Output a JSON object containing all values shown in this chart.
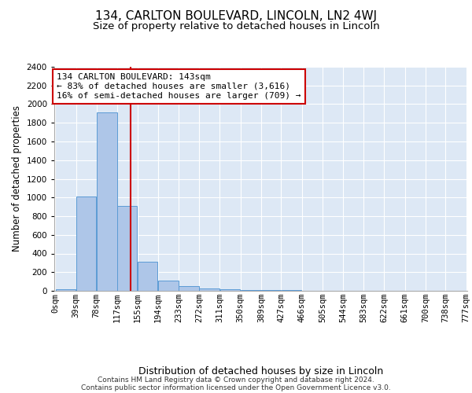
{
  "title1": "134, CARLTON BOULEVARD, LINCOLN, LN2 4WJ",
  "title2": "Size of property relative to detached houses in Lincoln",
  "xlabel": "Distribution of detached houses by size in Lincoln",
  "ylabel": "Number of detached properties",
  "bin_edges": [
    0,
    39,
    78,
    117,
    155,
    194,
    233,
    272,
    311,
    350,
    389,
    427,
    466,
    505,
    544,
    583,
    622,
    661,
    700,
    738,
    777
  ],
  "bin_labels": [
    "0sqm",
    "39sqm",
    "78sqm",
    "117sqm",
    "155sqm",
    "194sqm",
    "233sqm",
    "272sqm",
    "311sqm",
    "350sqm",
    "389sqm",
    "427sqm",
    "466sqm",
    "505sqm",
    "544sqm",
    "583sqm",
    "622sqm",
    "661sqm",
    "700sqm",
    "738sqm",
    "777sqm"
  ],
  "bar_heights": [
    20,
    1010,
    1910,
    910,
    310,
    110,
    50,
    25,
    20,
    8,
    5,
    5,
    3,
    0,
    0,
    0,
    0,
    0,
    0,
    0
  ],
  "bar_color": "#aec6e8",
  "bar_edge_color": "#5b9bd5",
  "bg_color": "#dde8f5",
  "grid_color": "#ffffff",
  "vline_x": 143,
  "vline_color": "#cc0000",
  "annotation_text": "134 CARLTON BOULEVARD: 143sqm\n← 83% of detached houses are smaller (3,616)\n16% of semi-detached houses are larger (709) →",
  "annotation_box_color": "#cc0000",
  "ylim": [
    0,
    2400
  ],
  "yticks": [
    0,
    200,
    400,
    600,
    800,
    1000,
    1200,
    1400,
    1600,
    1800,
    2000,
    2200,
    2400
  ],
  "footnote1": "Contains HM Land Registry data © Crown copyright and database right 2024.",
  "footnote2": "Contains public sector information licensed under the Open Government Licence v3.0.",
  "title1_fontsize": 11,
  "title2_fontsize": 9.5,
  "xlabel_fontsize": 9,
  "ylabel_fontsize": 8.5,
  "tick_fontsize": 7.5,
  "annotation_fontsize": 8,
  "footnote_fontsize": 6.5
}
